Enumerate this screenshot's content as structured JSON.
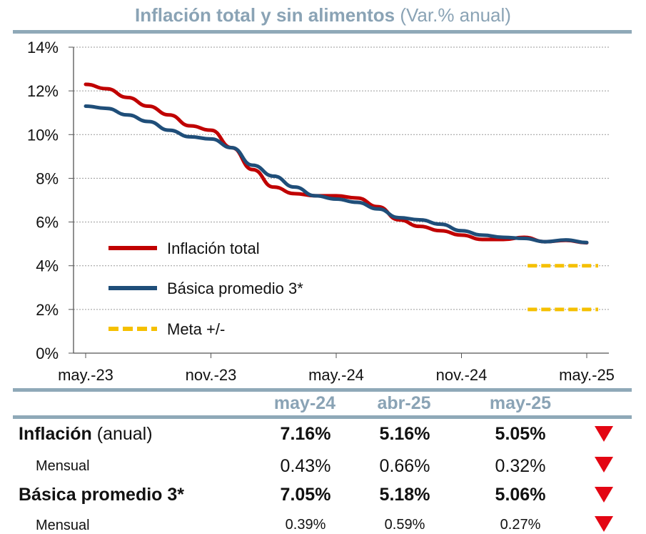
{
  "chart_data": {
    "type": "line",
    "title": "Inflación total y sin alimentos",
    "subtitle": "(Var.% anual)",
    "ylim": [
      0,
      14
    ],
    "y_ticks": [
      "0%",
      "2%",
      "4%",
      "6%",
      "8%",
      "10%",
      "12%",
      "14%"
    ],
    "x_tick_labels": [
      "may.-23",
      "nov.-23",
      "may.-24",
      "nov.-24",
      "may.-25"
    ],
    "x_months": [
      "may.-23",
      "jun.-23",
      "jul.-23",
      "ago.-23",
      "sep.-23",
      "oct.-23",
      "nov.-23",
      "dic.-23",
      "ene.-24",
      "feb.-24",
      "mar.-24",
      "abr.-24",
      "may.-24",
      "jun.-24",
      "jul.-24",
      "ago.-24",
      "sep.-24",
      "oct.-24",
      "nov.-24",
      "dic.-24",
      "ene.-25",
      "feb.-25",
      "mar.-25",
      "abr.-25",
      "may.-25"
    ],
    "series": [
      {
        "name": "Inflación total",
        "color": "#c00000",
        "values": [
          12.3,
          12.1,
          11.7,
          11.3,
          10.9,
          10.4,
          10.2,
          9.4,
          8.4,
          7.6,
          7.3,
          7.2,
          7.2,
          7.1,
          6.7,
          6.1,
          5.8,
          5.6,
          5.4,
          5.2,
          5.2,
          5.3,
          5.1,
          5.16,
          5.05
        ]
      },
      {
        "name": "Básica promedio 3*",
        "color": "#1f4e79",
        "values": [
          11.3,
          11.2,
          10.9,
          10.6,
          10.2,
          9.9,
          9.8,
          9.4,
          8.6,
          8.1,
          7.6,
          7.2,
          7.05,
          6.9,
          6.6,
          6.2,
          6.1,
          5.9,
          5.6,
          5.4,
          5.3,
          5.25,
          5.1,
          5.18,
          5.06
        ]
      },
      {
        "name": "Meta +/-",
        "color": "#f5c000",
        "style": "dashed",
        "bands": [
          4,
          2
        ],
        "x_start": "feb.-25",
        "x_end": "may.-25"
      }
    ]
  },
  "table": {
    "headers": [
      "may-24",
      "abr-25",
      "may-25"
    ],
    "rows": [
      {
        "label_bold": "Inflación",
        "label_rest": " (anual)",
        "values": [
          "7.16%",
          "5.16%",
          "5.05%"
        ],
        "trend": "down"
      },
      {
        "label_bold": "",
        "label_rest": "Mensual",
        "values": [
          "0.43%",
          "0.66%",
          "0.32%"
        ],
        "trend": "down"
      },
      {
        "label_bold": "Básica promedio 3*",
        "label_rest": "",
        "values": [
          "7.05%",
          "5.18%",
          "5.06%"
        ],
        "trend": "down"
      },
      {
        "label_bold": "",
        "label_rest": "Mensual",
        "values": [
          "0.39%",
          "0.59%",
          "0.27%"
        ],
        "trend": "down"
      }
    ]
  },
  "colors": {
    "accent": "#8aa3b5",
    "rule": "#8fa9b8",
    "down_arrow": "#e30613"
  }
}
